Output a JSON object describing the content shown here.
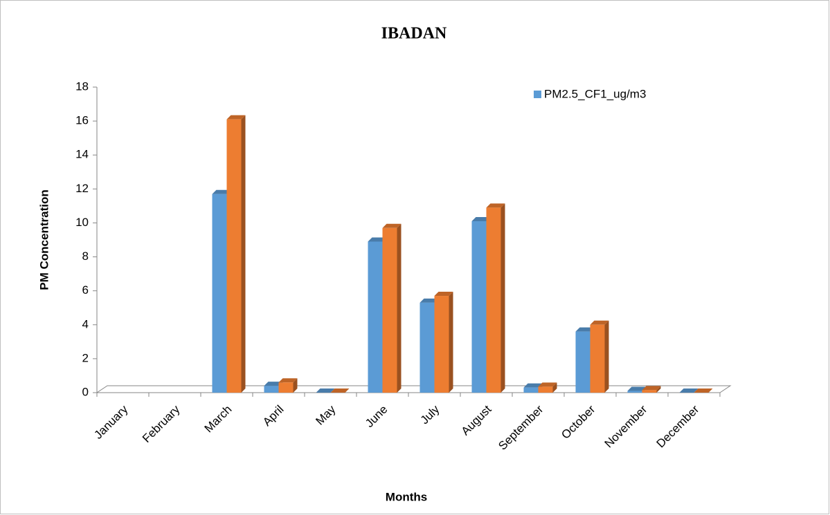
{
  "chart_data": {
    "type": "bar",
    "title": "IBADAN",
    "xlabel": "Months",
    "ylabel": "PM Concentration",
    "categories": [
      "January",
      "February",
      "March",
      "April",
      "May",
      "June",
      "July",
      "August",
      "September",
      "October",
      "November",
      "December"
    ],
    "series": [
      {
        "name": "PM2.5_CF1_ug/m3",
        "color": "#5b9bd5",
        "values": [
          null,
          null,
          11.7,
          0.4,
          0,
          8.9,
          5.3,
          10.1,
          0.3,
          3.6,
          0.1,
          0
        ]
      },
      {
        "color": "#ed7d31",
        "values": [
          null,
          null,
          16.1,
          0.6,
          0,
          9.7,
          5.7,
          10.9,
          0.35,
          4.0,
          0.15,
          0
        ]
      }
    ],
    "ylim": [
      0,
      18
    ],
    "yticks": [
      0,
      2,
      4,
      6,
      8,
      10,
      12,
      14,
      16,
      18
    ],
    "legend": "upper right",
    "grid": false
  }
}
